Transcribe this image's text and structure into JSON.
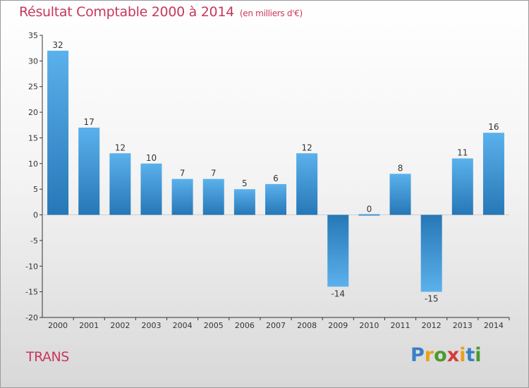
{
  "header": {
    "title": "Résultat Comptable 2000 à 2014",
    "subtitle": "(en milliers d'€)"
  },
  "footer": {
    "commune": "TRANS",
    "logo_text": "Proxiti",
    "logo_colors": [
      "#3a7fc4",
      "#e8a21c",
      "#4a9a2f",
      "#d63b3b",
      "#e8a21c",
      "#3a7fc4",
      "#4a9a2f"
    ]
  },
  "colors": {
    "title": "#c8375c",
    "bar_dark": "#2677b6",
    "bar_light": "#5bb1ec",
    "axis": "#333333"
  },
  "chart_data": {
    "type": "bar",
    "title": "Résultat Comptable 2000 à 2014",
    "subtitle": "(en milliers d'€)",
    "categories": [
      "2000",
      "2001",
      "2002",
      "2003",
      "2004",
      "2005",
      "2006",
      "2007",
      "2008",
      "2009",
      "2010",
      "2011",
      "2012",
      "2013",
      "2014"
    ],
    "values": [
      32,
      17,
      12,
      10,
      7,
      7,
      5,
      6,
      12,
      -14,
      0,
      8,
      -15,
      11,
      16
    ],
    "ylim": [
      -20,
      35
    ],
    "yticks": [
      35,
      30,
      25,
      20,
      15,
      10,
      5,
      0,
      -5,
      -10,
      -15,
      -20
    ],
    "grid": false,
    "data_labels": true
  }
}
